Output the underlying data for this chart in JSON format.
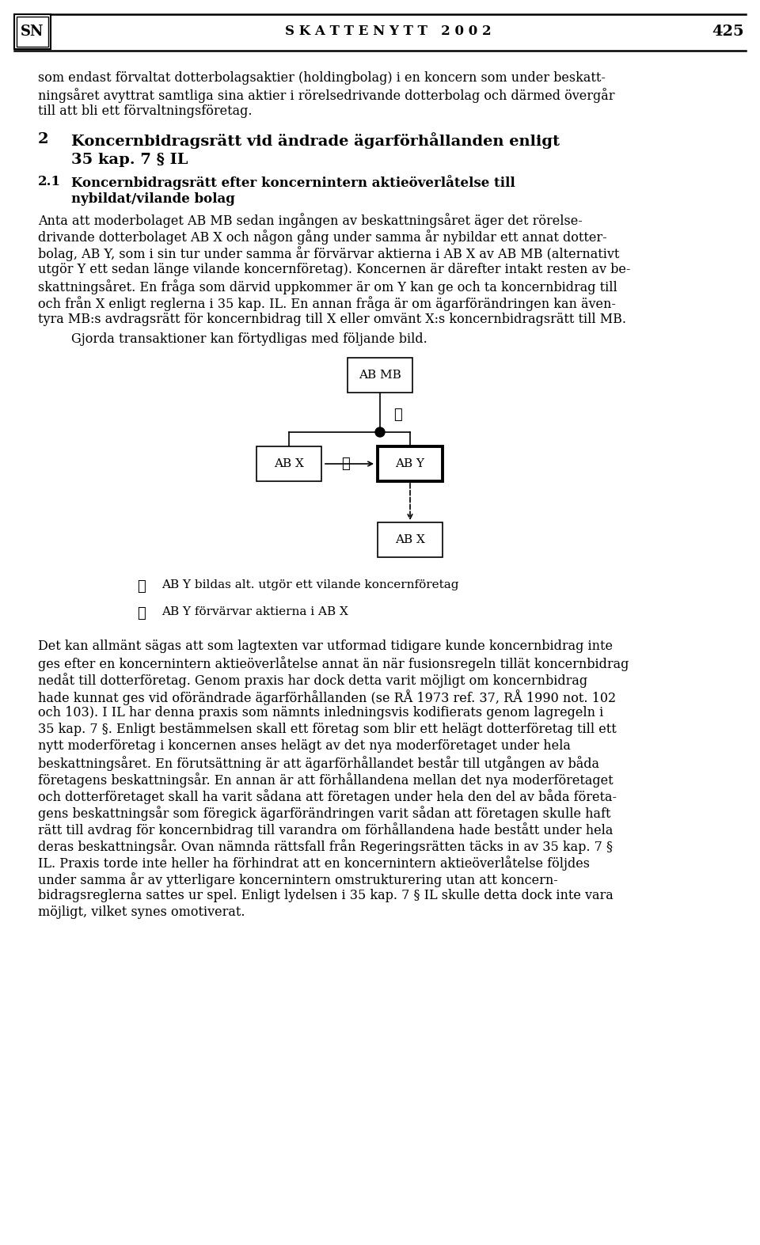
{
  "bg_color": "#ffffff",
  "text_color": "#000000",
  "header_title": "S K A T T E N Y T T   2 0 0 2",
  "header_page": "425",
  "header_logo": "SN",
  "para1": "som endast förvaltat dotterbolagsaktier (holdingbolag) i en koncern som under beskatt-\nningsåret avyttrat samtliga sina aktier i rörelsedrivande dotterbolag och därmed övergår\ntill att bli ett förvaltningsföretag.",
  "section_num": "2",
  "section_title_line1": "Koncernbidragsrätt vid ändrade ägarförhållanden enligt",
  "section_title_line2": "35 kap. 7 § IL",
  "subsection_num": "2.1",
  "subsection_title_line1": "Koncernbidragsrätt efter koncernintern aktieöverlåtelse till",
  "subsection_title_line2": "nybildat/vilande bolag",
  "body1_lines": [
    "Anta att moderbolaget AB MB sedan ingången av beskattningsåret äger det rörelse-",
    "drivande dotterbolaget AB X och någon gång under samma år nybildar ett annat dotter-",
    "bolag, AB Y, som i sin tur under samma år förvärvar aktierna i AB X av AB MB (alternativt",
    "utgör Y ett sedan länge vilande koncernföretag). Koncernen är därefter intakt resten av be-",
    "skattningsåret. En fråga som därvid uppkommer är om Y kan ge och ta koncernbidrag till",
    "och från X enligt reglerna i 35 kap. IL. En annan fråga är om ägarförändringen kan även-",
    "tyra MB:s avdragsrätt för koncernbidrag till X eller omvänt X:s koncernbidragsrätt till MB."
  ],
  "body1_indent": "   Gjorda transaktioner kan förtydligas med följande bild.",
  "legend1": "AB Y bildas alt. utgör ett vilande koncernföretag",
  "legend2": "AB Y förvärvar aktierna i AB X",
  "body2_lines": [
    "Det kan allmänt sägas att som lagtexten var utformad tidigare kunde koncernbidrag inte",
    "ges efter en koncernintern aktieöverlåtelse annat än när fusionsregeln tillät koncernbidrag",
    "nedåt till dotterföretag. Genom praxis har dock detta varit möjligt om koncernbidrag",
    "hade kunnat ges vid oförändrade ägarförhållanden (se RÅ 1973 ref. 37, RÅ 1990 not. 102",
    "och 103). I IL har denna praxis som nämnts inledningsvis kodifierats genom lagregeln i",
    "35 kap. 7 §. Enligt bestämmelsen skall ett företag som blir ett helägt dotterföretag till ett",
    "nytt moderföretag i koncernen anses helägt av det nya moderföretaget under hela",
    "beskattningsåret. En förutsättning är att ägarförhållandet består till utgången av båda",
    "företagens beskattningsår. En annan är att förhållandena mellan det nya moderföretaget",
    "och dotterföretaget skall ha varit sådana att företagen under hela den del av båda företa-",
    "gens beskattningsår som föregick ägarförändringen varit sådan att företagen skulle haft",
    "rätt till avdrag för koncernbidrag till varandra om förhållandena hade bestått under hela",
    "deras beskattningsår. Ovan nämnda rättsfall från Regeringsrätten täcks in av 35 kap. 7 §",
    "IL. Praxis torde inte heller ha förhindrat att en koncernintern aktieöverlåtelse följdes",
    "under samma år av ytterligare koncernintern omstrukturering utan att koncern-",
    "bidragsreglerna sattes ur spel. Enligt lydelsen i 35 kap. 7 § IL skulle detta dock inte vara",
    "möjligt, vilket synes omotiverat."
  ]
}
